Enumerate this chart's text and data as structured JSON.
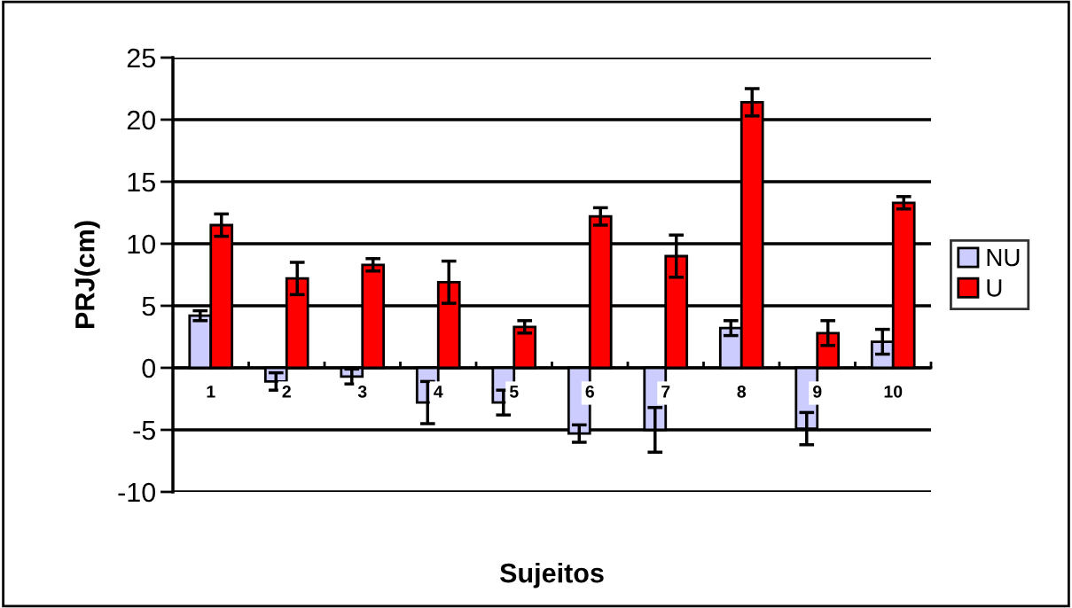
{
  "chart_data": {
    "type": "bar",
    "xlabel": "Sujeitos",
    "ylabel": "PRJ(cm)",
    "categories": [
      "1",
      "2",
      "3",
      "4",
      "5",
      "6",
      "7",
      "8",
      "9",
      "10"
    ],
    "series": [
      {
        "name": "NU",
        "color": "#ccccff",
        "values": [
          4.2,
          -1.1,
          -0.7,
          -2.8,
          -2.8,
          -5.3,
          -5.0,
          3.2,
          -4.9,
          2.1
        ],
        "errors": [
          0.4,
          0.7,
          0.6,
          1.7,
          1.0,
          0.7,
          1.8,
          0.6,
          1.3,
          1.0
        ]
      },
      {
        "name": "U",
        "color": "#ff0000",
        "values": [
          11.5,
          7.2,
          8.3,
          6.9,
          3.3,
          12.2,
          9.0,
          21.4,
          2.8,
          13.3
        ],
        "errors": [
          0.9,
          1.3,
          0.5,
          1.7,
          0.5,
          0.7,
          1.7,
          1.1,
          1.0,
          0.5
        ]
      }
    ],
    "ylim": [
      -10,
      25
    ],
    "yticks": [
      -10,
      -5,
      0,
      5,
      10,
      15,
      20,
      25
    ],
    "grid": "y",
    "legend": "right"
  }
}
